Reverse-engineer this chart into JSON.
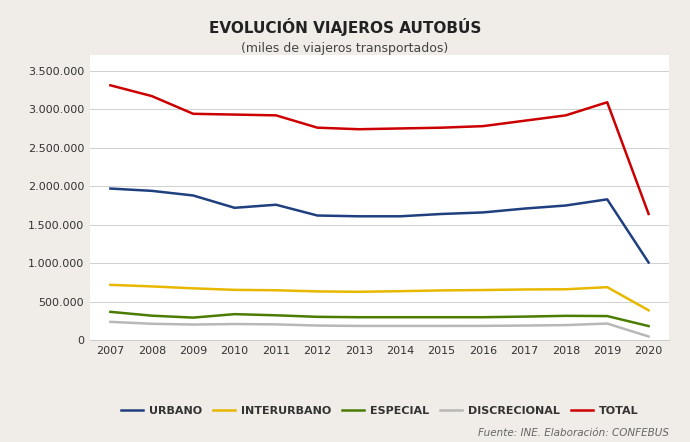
{
  "title": "EVOLUCIÓN VIAJEROS AUTOBÚS",
  "subtitle": "(miles de viajeros transportados)",
  "footnote": "Fuente: INE. Elaboración: CONFEBUS",
  "years": [
    2007,
    2008,
    2009,
    2010,
    2011,
    2012,
    2013,
    2014,
    2015,
    2016,
    2017,
    2018,
    2019,
    2020
  ],
  "urbano": [
    1970000,
    1940000,
    1880000,
    1720000,
    1760000,
    1620000,
    1610000,
    1610000,
    1640000,
    1660000,
    1710000,
    1750000,
    1830000,
    1010000
  ],
  "interurbano": [
    720000,
    700000,
    675000,
    655000,
    650000,
    635000,
    630000,
    638000,
    648000,
    653000,
    660000,
    663000,
    690000,
    390000
  ],
  "especial": [
    370000,
    320000,
    295000,
    340000,
    325000,
    305000,
    300000,
    300000,
    300000,
    300000,
    308000,
    318000,
    315000,
    185000
  ],
  "discrecional": [
    240000,
    215000,
    205000,
    212000,
    207000,
    192000,
    187000,
    187000,
    187000,
    188000,
    192000,
    198000,
    218000,
    50000
  ],
  "total": [
    3310000,
    3170000,
    2940000,
    2930000,
    2920000,
    2760000,
    2740000,
    2750000,
    2760000,
    2780000,
    2850000,
    2920000,
    3090000,
    1640000
  ],
  "colors": {
    "urbano": "#1f3f7f",
    "interurbano": "#e8b800",
    "especial": "#4a7c00",
    "discrecional": "#b8b8b8",
    "total": "#cc0000"
  },
  "ylim": [
    0,
    3700000
  ],
  "yticks": [
    0,
    500000,
    1000000,
    1500000,
    2000000,
    2500000,
    3000000,
    3500000
  ],
  "background_color": "#f0ece8",
  "plot_bg_color": "#ffffff",
  "title_color": "#222222",
  "subtitle_color": "#444444",
  "legend_labels": [
    "URBANO",
    "INTERURBANO",
    "ESPECIAL",
    "DISCRECIONAL",
    "TOTAL"
  ],
  "linewidth": 1.8
}
